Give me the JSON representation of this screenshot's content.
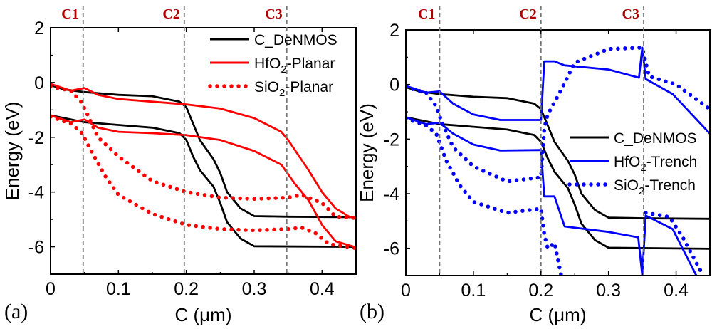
{
  "chart_data": [
    {
      "type": "line",
      "panel_label": "(a)",
      "xlabel": "C (μm)",
      "ylabel": "Energy (eV)",
      "xlim": [
        0,
        0.45
      ],
      "ylim": [
        -7,
        2
      ],
      "xticks": [
        "0",
        "0.1",
        "0.2",
        "0.3",
        "0.4"
      ],
      "yticks": [
        "2",
        "0",
        "-2",
        "-4",
        "-6"
      ],
      "grid": false,
      "legend_position": "top-right",
      "markers": [
        {
          "label": "C1",
          "x": 0.048
        },
        {
          "label": "C2",
          "x": 0.197
        },
        {
          "label": "C3",
          "x": 0.348
        }
      ],
      "series": [
        {
          "name": "C_DeNMOS",
          "color": "#000000",
          "style": "solid",
          "bands": [
            [
              [
                0,
                -0.1
              ],
              [
                0.02,
                -0.25
              ],
              [
                0.05,
                -0.35
              ],
              [
                0.1,
                -0.45
              ],
              [
                0.15,
                -0.5
              ],
              [
                0.19,
                -0.7
              ],
              [
                0.2,
                -0.9
              ],
              [
                0.21,
                -1.5
              ],
              [
                0.22,
                -2.1
              ],
              [
                0.24,
                -2.8
              ],
              [
                0.25,
                -3.3
              ],
              [
                0.26,
                -4.0
              ],
              [
                0.28,
                -4.6
              ],
              [
                0.3,
                -4.88
              ],
              [
                0.35,
                -4.9
              ],
              [
                0.45,
                -4.92
              ]
            ],
            [
              [
                0,
                -1.2
              ],
              [
                0.05,
                -1.45
              ],
              [
                0.1,
                -1.55
              ],
              [
                0.15,
                -1.65
              ],
              [
                0.19,
                -1.85
              ],
              [
                0.2,
                -2.1
              ],
              [
                0.21,
                -2.7
              ],
              [
                0.22,
                -3.2
              ],
              [
                0.24,
                -3.8
              ],
              [
                0.25,
                -4.4
              ],
              [
                0.26,
                -5.1
              ],
              [
                0.28,
                -5.7
              ],
              [
                0.3,
                -5.98
              ],
              [
                0.45,
                -6.0
              ]
            ]
          ]
        },
        {
          "name": "HfO2-Planar",
          "label_main": "HfO",
          "label_sub": "2",
          "label_rest": "-Planar",
          "color": "#ff0000",
          "style": "solid",
          "bands": [
            [
              [
                0,
                -0.05
              ],
              [
                0.03,
                -0.3
              ],
              [
                0.05,
                -0.2
              ],
              [
                0.07,
                -0.45
              ],
              [
                0.1,
                -0.6
              ],
              [
                0.15,
                -0.7
              ],
              [
                0.2,
                -0.8
              ],
              [
                0.25,
                -0.95
              ],
              [
                0.3,
                -1.3
              ],
              [
                0.34,
                -1.8
              ],
              [
                0.35,
                -2.1
              ],
              [
                0.38,
                -3.2
              ],
              [
                0.4,
                -4.0
              ],
              [
                0.42,
                -4.6
              ],
              [
                0.44,
                -4.9
              ],
              [
                0.45,
                -4.95
              ]
            ],
            [
              [
                0,
                -1.2
              ],
              [
                0.03,
                -1.45
              ],
              [
                0.05,
                -1.35
              ],
              [
                0.07,
                -1.65
              ],
              [
                0.1,
                -1.8
              ],
              [
                0.15,
                -1.85
              ],
              [
                0.2,
                -1.92
              ],
              [
                0.25,
                -2.1
              ],
              [
                0.3,
                -2.5
              ],
              [
                0.34,
                -3.0
              ],
              [
                0.36,
                -3.7
              ],
              [
                0.38,
                -4.3
              ],
              [
                0.4,
                -5.2
              ],
              [
                0.42,
                -5.8
              ],
              [
                0.45,
                -6.02
              ]
            ]
          ]
        },
        {
          "name": "SiO2-Planar",
          "label_main": "SiO",
          "label_sub": "2",
          "label_rest": "-Planar",
          "color": "#ff0000",
          "style": "dotted",
          "bands": [
            [
              [
                0,
                -0.15
              ],
              [
                0.03,
                -0.3
              ],
              [
                0.045,
                -0.7
              ],
              [
                0.055,
                -1.2
              ],
              [
                0.07,
                -2.0
              ],
              [
                0.1,
                -2.7
              ],
              [
                0.15,
                -3.6
              ],
              [
                0.2,
                -4.0
              ],
              [
                0.25,
                -4.2
              ],
              [
                0.3,
                -4.25
              ],
              [
                0.35,
                -4.2
              ],
              [
                0.37,
                -4.1
              ],
              [
                0.4,
                -4.4
              ],
              [
                0.42,
                -4.9
              ],
              [
                0.45,
                -4.95
              ]
            ],
            [
              [
                0,
                -1.25
              ],
              [
                0.03,
                -1.5
              ],
              [
                0.045,
                -1.8
              ],
              [
                0.06,
                -2.5
              ],
              [
                0.08,
                -3.4
              ],
              [
                0.1,
                -4.1
              ],
              [
                0.15,
                -4.8
              ],
              [
                0.2,
                -5.2
              ],
              [
                0.25,
                -5.35
              ],
              [
                0.3,
                -5.4
              ],
              [
                0.35,
                -5.35
              ],
              [
                0.37,
                -5.3
              ],
              [
                0.39,
                -5.5
              ],
              [
                0.41,
                -5.9
              ],
              [
                0.45,
                -6.05
              ]
            ]
          ]
        }
      ]
    },
    {
      "type": "line",
      "panel_label": "(b)",
      "xlabel": "C (μm)",
      "ylabel": "Energy (eV)",
      "xlim": [
        0,
        0.45
      ],
      "ylim": [
        -7,
        2
      ],
      "xticks": [
        "0",
        "0.1",
        "0.2",
        "0.3",
        "0.4"
      ],
      "yticks": [
        "2",
        "0",
        "-2",
        "-4",
        "-6"
      ],
      "grid": false,
      "legend_position": "right",
      "markers": [
        {
          "label": "C1",
          "x": 0.05
        },
        {
          "label": "C2",
          "x": 0.2
        },
        {
          "label": "C3",
          "x": 0.352
        }
      ],
      "series": [
        {
          "name": "C_DeNMOS",
          "color": "#000000",
          "style": "solid",
          "bands": [
            [
              [
                0,
                -0.1
              ],
              [
                0.02,
                -0.25
              ],
              [
                0.05,
                -0.35
              ],
              [
                0.1,
                -0.45
              ],
              [
                0.15,
                -0.5
              ],
              [
                0.19,
                -0.7
              ],
              [
                0.2,
                -0.9
              ],
              [
                0.21,
                -1.5
              ],
              [
                0.22,
                -2.1
              ],
              [
                0.24,
                -2.8
              ],
              [
                0.25,
                -3.3
              ],
              [
                0.26,
                -4.0
              ],
              [
                0.28,
                -4.6
              ],
              [
                0.3,
                -4.88
              ],
              [
                0.35,
                -4.9
              ],
              [
                0.45,
                -4.92
              ]
            ],
            [
              [
                0,
                -1.2
              ],
              [
                0.05,
                -1.45
              ],
              [
                0.1,
                -1.55
              ],
              [
                0.15,
                -1.65
              ],
              [
                0.19,
                -1.85
              ],
              [
                0.2,
                -2.1
              ],
              [
                0.21,
                -2.7
              ],
              [
                0.22,
                -3.2
              ],
              [
                0.24,
                -3.8
              ],
              [
                0.25,
                -4.4
              ],
              [
                0.26,
                -5.1
              ],
              [
                0.28,
                -5.7
              ],
              [
                0.3,
                -5.98
              ],
              [
                0.45,
                -6.02
              ]
            ]
          ]
        },
        {
          "name": "HfO2-Trench",
          "label_main": "HfO",
          "label_sub": "2",
          "label_rest": "-Trench",
          "color": "#0000ff",
          "style": "solid",
          "bands": [
            [
              [
                0,
                -0.05
              ],
              [
                0.03,
                -0.3
              ],
              [
                0.05,
                -0.25
              ],
              [
                0.07,
                -0.7
              ],
              [
                0.1,
                -1.1
              ],
              [
                0.14,
                -1.3
              ],
              [
                0.2,
                -1.3
              ],
              [
                0.205,
                0.85
              ],
              [
                0.22,
                0.85
              ],
              [
                0.235,
                0.7
              ],
              [
                0.3,
                0.55
              ],
              [
                0.345,
                0.25
              ],
              [
                0.35,
                1.35
              ],
              [
                0.355,
                0.2
              ],
              [
                0.395,
                -0.35
              ],
              [
                0.45,
                -1.8
              ]
            ],
            [
              [
                0,
                -1.2
              ],
              [
                0.03,
                -1.45
              ],
              [
                0.05,
                -1.4
              ],
              [
                0.07,
                -1.8
              ],
              [
                0.1,
                -2.2
              ],
              [
                0.14,
                -2.42
              ],
              [
                0.2,
                -2.4
              ],
              [
                0.205,
                -4.1
              ],
              [
                0.22,
                -4.1
              ],
              [
                0.235,
                -5.2
              ],
              [
                0.3,
                -5.4
              ],
              [
                0.344,
                -5.6
              ],
              [
                0.35,
                -7.0
              ],
              [
                0.355,
                -4.8
              ],
              [
                0.395,
                -5.3
              ],
              [
                0.43,
                -7.0
              ]
            ]
          ]
        },
        {
          "name": "SiO2-Trench",
          "label_main": "SiO",
          "label_sub": "2",
          "label_rest": "-Trench",
          "color": "#0000ff",
          "style": "dotted",
          "bands": [
            [
              [
                0,
                -0.1
              ],
              [
                0.03,
                -0.3
              ],
              [
                0.045,
                -0.8
              ],
              [
                0.055,
                -1.5
              ],
              [
                0.07,
                -2.3
              ],
              [
                0.1,
                -3.0
              ],
              [
                0.15,
                -3.55
              ],
              [
                0.2,
                -3.4
              ],
              [
                0.205,
                -1.6
              ],
              [
                0.21,
                -1.1
              ],
              [
                0.23,
                -0.2
              ],
              [
                0.25,
                0.8
              ],
              [
                0.3,
                1.3
              ],
              [
                0.35,
                1.35
              ],
              [
                0.36,
                0.3
              ],
              [
                0.4,
                0.0
              ],
              [
                0.45,
                -0.9
              ]
            ],
            [
              [
                0,
                -1.25
              ],
              [
                0.03,
                -1.5
              ],
              [
                0.045,
                -1.8
              ],
              [
                0.06,
                -2.8
              ],
              [
                0.08,
                -3.7
              ],
              [
                0.1,
                -4.3
              ],
              [
                0.15,
                -4.7
              ],
              [
                0.2,
                -4.55
              ],
              [
                0.205,
                -5.5
              ],
              [
                0.21,
                -6.0
              ],
              [
                0.22,
                -5.8
              ],
              [
                0.23,
                -7.0
              ]
            ],
            [
              [
                0.355,
                -4.7
              ],
              [
                0.39,
                -4.85
              ],
              [
                0.41,
                -5.6
              ],
              [
                0.44,
                -7.0
              ]
            ]
          ]
        }
      ]
    }
  ]
}
